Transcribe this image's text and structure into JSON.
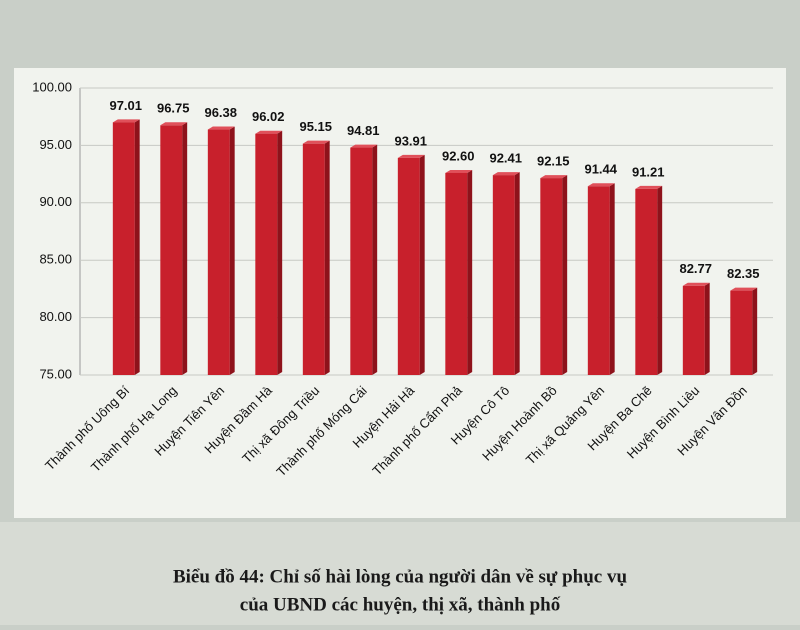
{
  "chart_data": {
    "type": "bar",
    "caption": [
      "Biểu đồ 44: Chỉ số hài lòng của người dân về sự phục vụ",
      "của UBND các huyện, thị xã, thành phố"
    ],
    "categories": [
      "Thành phố Uông Bí",
      "Thành phố Hạ Long",
      "Huyện Tiên Yên",
      "Huyện Đầm Hà",
      "Thị xã Đông Triều",
      "Thành phố Móng Cái",
      "Huyện Hải Hà",
      "Thành phố Cẩm Phả",
      "Huyện Cô Tô",
      "Huyện Hoành Bồ",
      "Thị xã Quảng Yên",
      "Huyện Ba Chẽ",
      "Huyện Bình Liêu",
      "Huyện Vân Đồn"
    ],
    "values": [
      97.01,
      96.75,
      96.38,
      96.02,
      95.15,
      94.81,
      93.91,
      92.6,
      92.41,
      92.15,
      91.44,
      91.21,
      82.77,
      82.35
    ],
    "value_labels": [
      "97.01",
      "96.75",
      "96.38",
      "96.02",
      "95.15",
      "94.81",
      "93.91",
      "92.60",
      "92.41",
      "92.15",
      "91.44",
      "91.21",
      "82.77",
      "82.35"
    ],
    "color": "#c8202c",
    "ylim": [
      75,
      100
    ],
    "yticks": [
      {
        "value": 75,
        "label": "75.00"
      },
      {
        "value": 80,
        "label": "80.00"
      },
      {
        "value": 85,
        "label": "85.00"
      },
      {
        "value": 90,
        "label": "90.00"
      },
      {
        "value": 95,
        "label": "95.00"
      },
      {
        "value": 100,
        "label": "100.00"
      }
    ],
    "grid": true
  }
}
